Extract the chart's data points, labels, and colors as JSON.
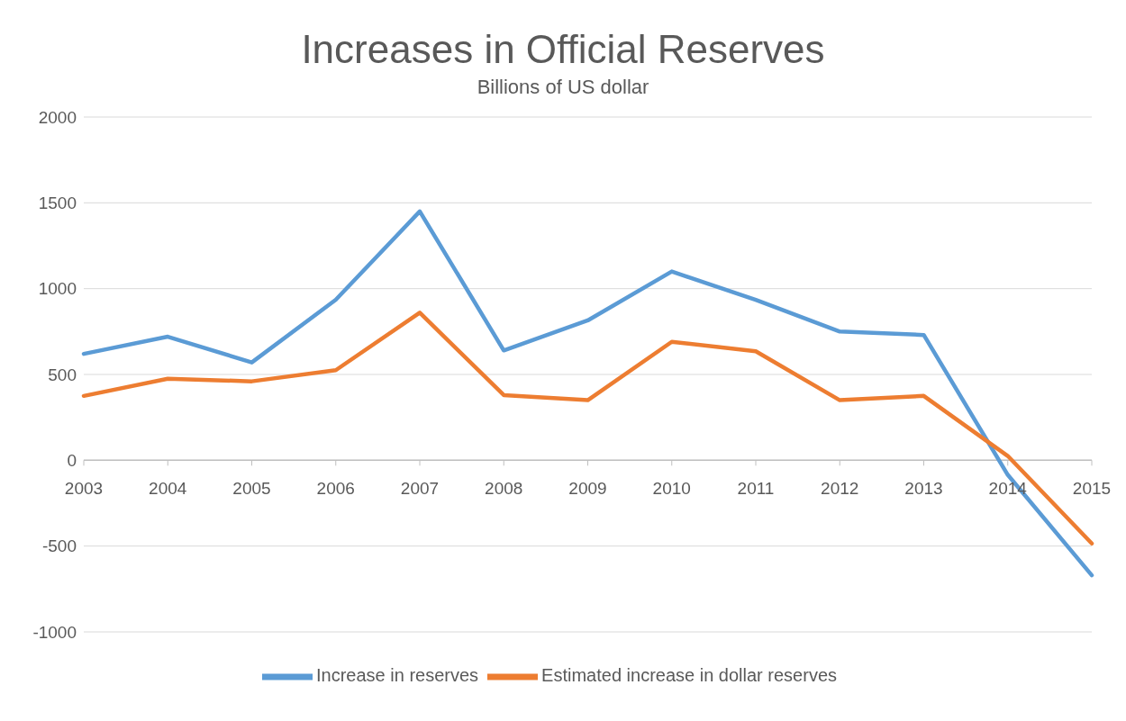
{
  "chart_data": {
    "type": "line",
    "title": "Increases in Official Reserves",
    "subtitle": "Billions of US dollar",
    "categories": [
      "2003",
      "2004",
      "2005",
      "2006",
      "2007",
      "2008",
      "2009",
      "2010",
      "2011",
      "2012",
      "2013",
      "2014",
      "2015"
    ],
    "series": [
      {
        "name": "Increase in reserves",
        "color": "#5b9bd5",
        "values": [
          620,
          720,
          570,
          935,
          1450,
          640,
          815,
          1100,
          935,
          750,
          730,
          -85,
          -670
        ]
      },
      {
        "name": "Estimated increase in dollar reserves",
        "color": "#ed7d31",
        "values": [
          375,
          475,
          460,
          525,
          860,
          380,
          350,
          690,
          635,
          350,
          375,
          25,
          -485
        ]
      }
    ],
    "ylim": [
      -1000,
      2000
    ],
    "yticks": [
      -1000,
      -500,
      0,
      500,
      1000,
      1500,
      2000
    ],
    "grid": "y",
    "legend": "bottom",
    "marker": "none",
    "line_style": "solid"
  }
}
